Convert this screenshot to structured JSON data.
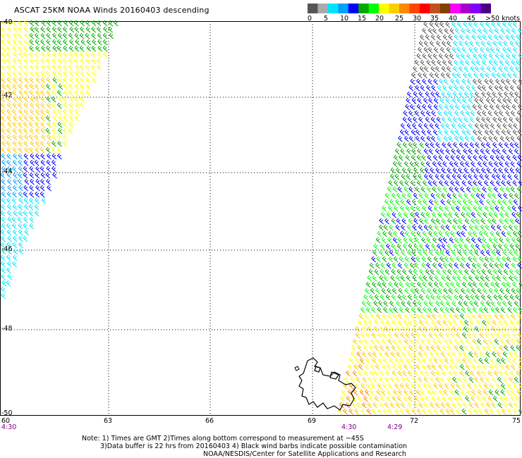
{
  "title": "ASCAT 25KM NOAA Winds 20160403 descending",
  "legend": {
    "colors": [
      "#555555",
      "#aaaaaa",
      "#00e5ff",
      "#00a0ff",
      "#0000ff",
      "#00aa00",
      "#00ff00",
      "#ffff00",
      "#ffcc00",
      "#ff8800",
      "#ff4400",
      "#ff0000",
      "#c05020",
      "#804000",
      "#ff00ff",
      "#aa00cc",
      "#8000ff",
      "#4b0082"
    ],
    "labels": [
      "0",
      "5",
      "10",
      "15",
      "20",
      "25",
      "30",
      "35",
      "40",
      "45",
      ">50 knots"
    ]
  },
  "axes": {
    "lon_ticks": [
      "60",
      "63",
      "66",
      "69",
      "72",
      "75"
    ],
    "lat_ticks": [
      "-40",
      "-42",
      "-44",
      "-46",
      "-48",
      "-50"
    ]
  },
  "times": {
    "left": "4:30",
    "mid1": "4:30",
    "mid2": "4:29"
  },
  "notes": {
    "line1": "Note: 1) Times are GMT 2)Times along bottom correspond to measurement at ~45S",
    "line2": "3)Data buffer is 22 hrs from 20160403 4) Black wind barbs indicate possible contamination",
    "line3": "NOAA/NESDIS/Center for Satellite Applications and Research"
  }
}
